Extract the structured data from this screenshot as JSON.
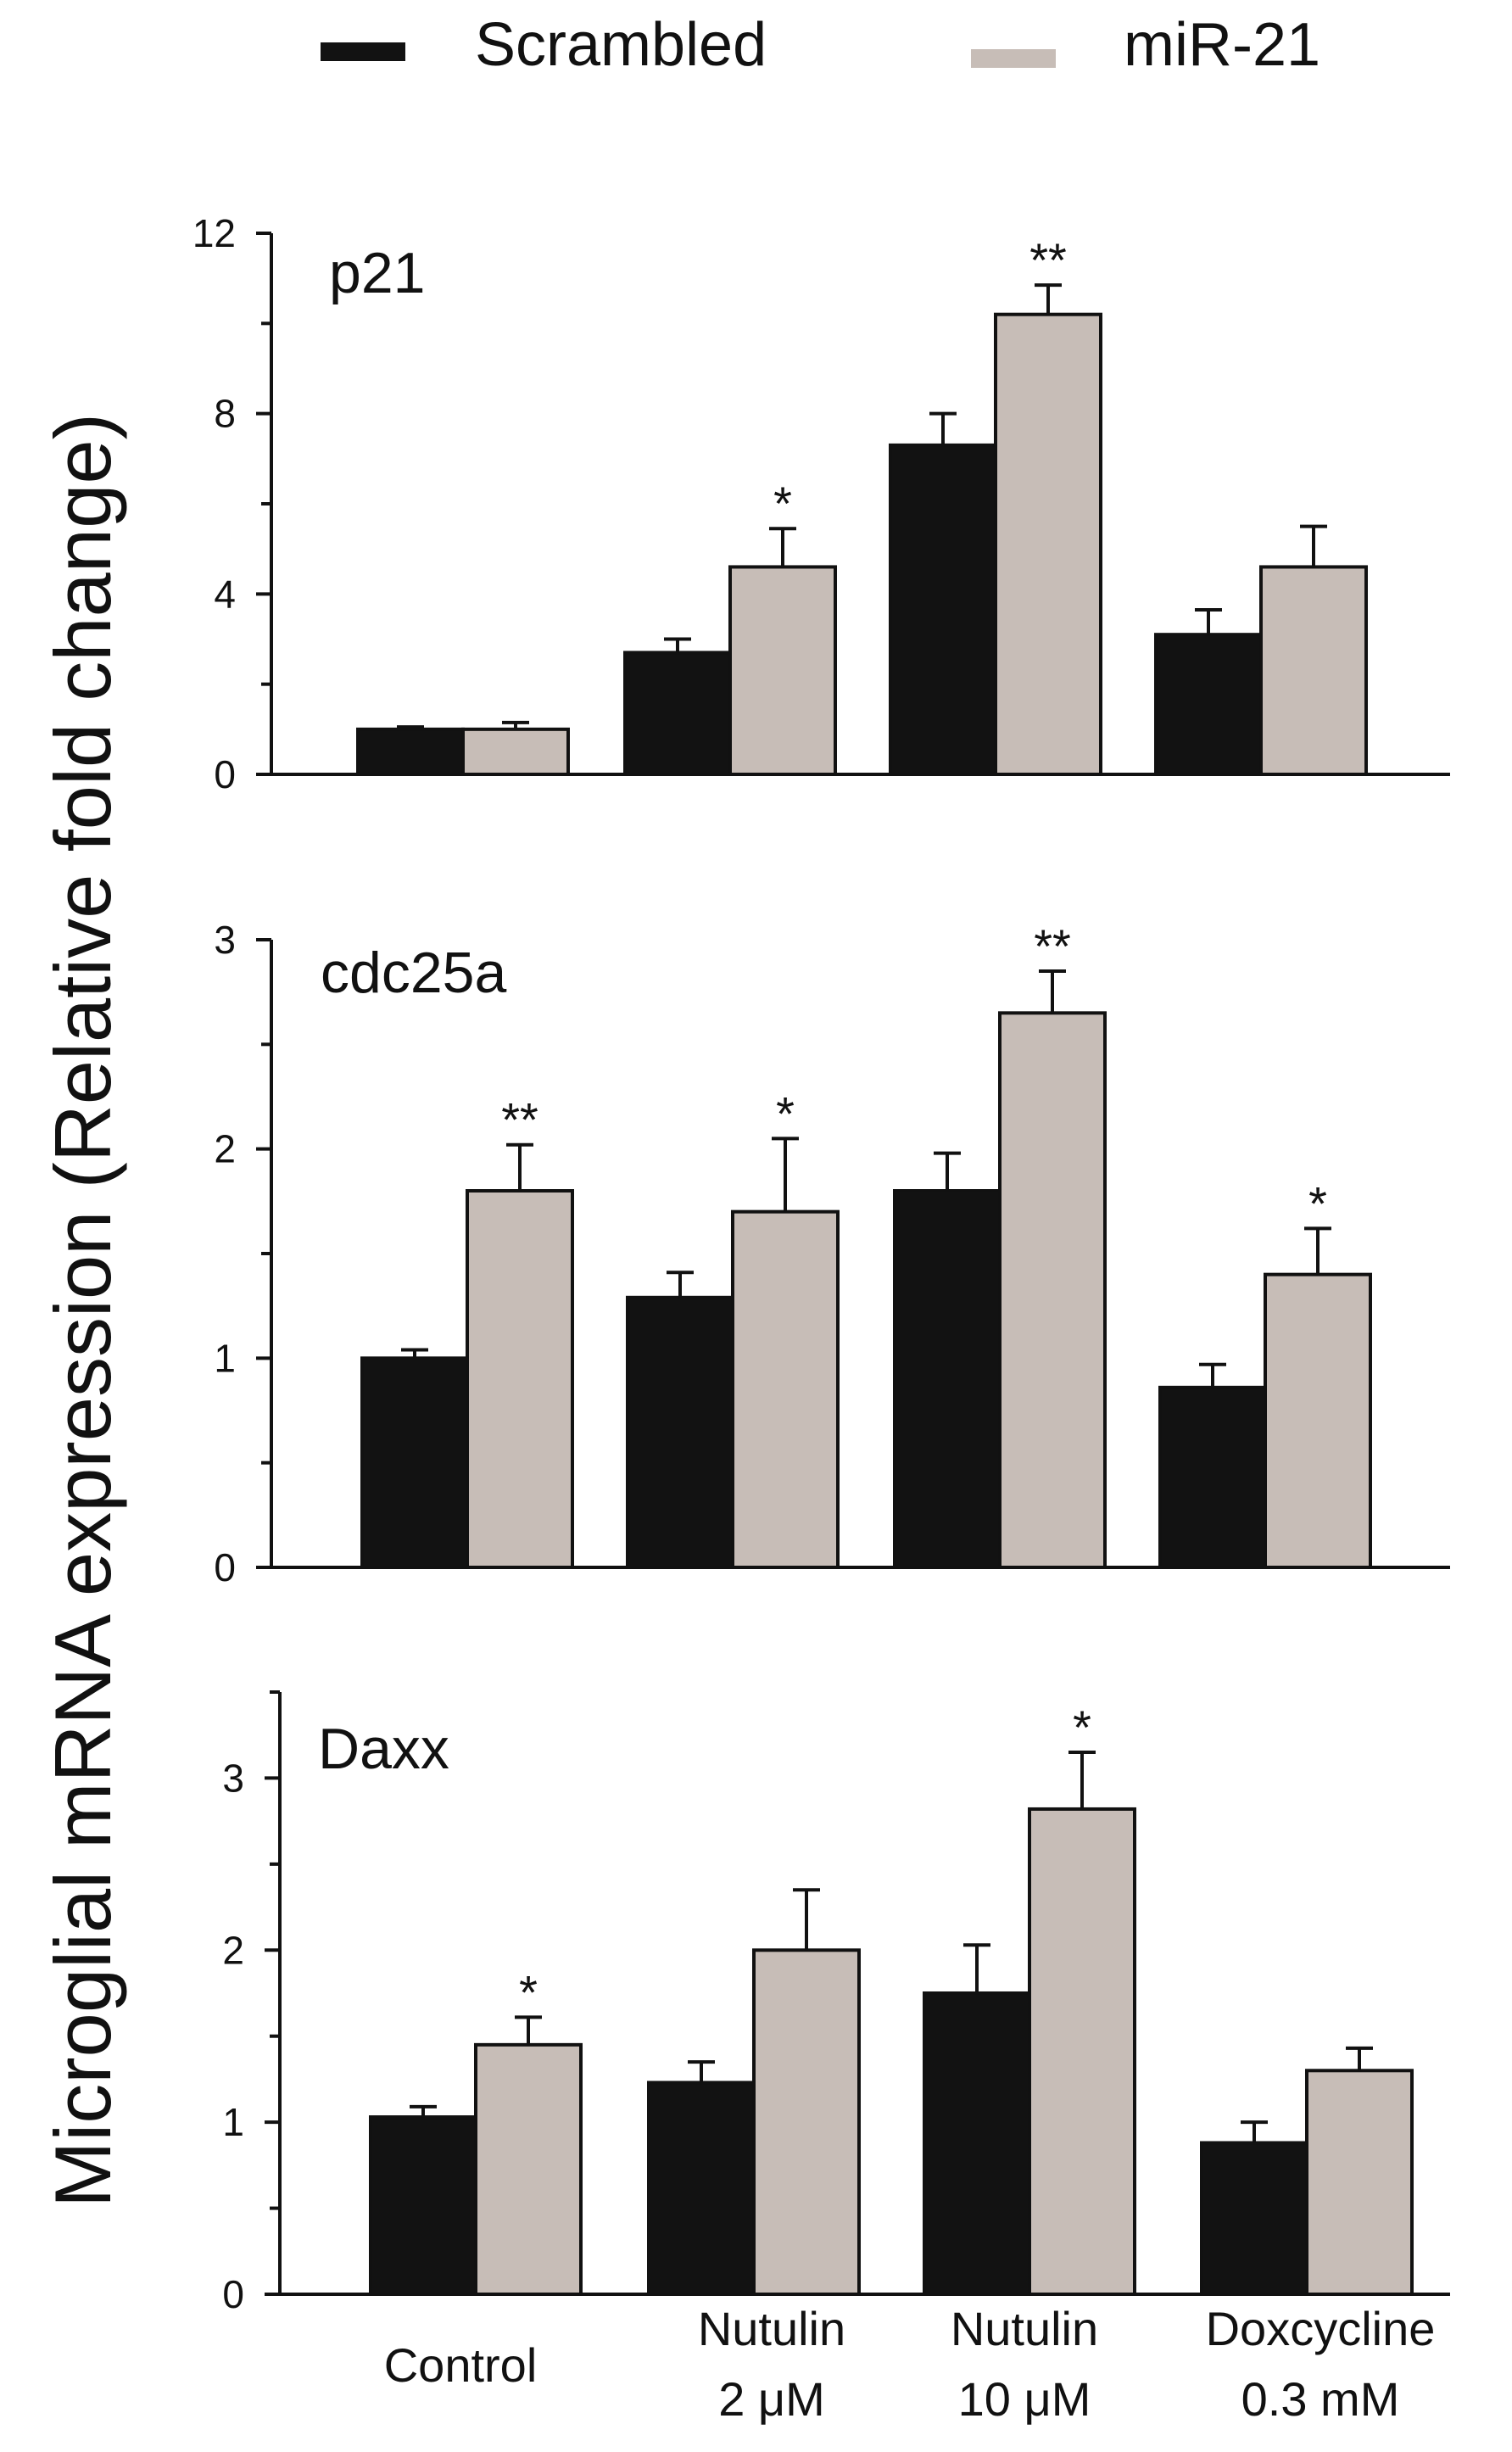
{
  "colors": {
    "scrambled": "#121212",
    "mir21": "#c7bdb7",
    "axis": "#111111"
  },
  "legend": [
    {
      "label": "Scrambled",
      "color_key": "scrambled"
    },
    {
      "label": "miR-21",
      "color_key": "mir21"
    }
  ],
  "y_axis_label": "Microglial mRNA expression (Relative fold change)",
  "x_categories": [
    {
      "line1": "Control",
      "line2": ""
    },
    {
      "line1": "Nutulin",
      "line2": "2 μM"
    },
    {
      "line1": "Nutulin",
      "line2": "10 μM"
    },
    {
      "line1": "Doxcycline",
      "line2": "0.3 mM"
    }
  ],
  "chart_data": [
    {
      "type": "bar",
      "title": "p21",
      "categories": [
        "Control",
        "Nutulin 2 μM",
        "Nutulin 10 μM",
        "Doxcycline 0.3 mM"
      ],
      "ylim": [
        0,
        12
      ],
      "major_ticks": [
        0,
        4,
        8,
        12
      ],
      "minor_step": 2,
      "series": [
        {
          "name": "Scrambled",
          "values": [
            1.0,
            2.7,
            7.3,
            3.1
          ],
          "errors": [
            0.05,
            0.3,
            0.7,
            0.55
          ]
        },
        {
          "name": "miR-21",
          "values": [
            1.0,
            4.6,
            10.2,
            4.6
          ],
          "errors": [
            0.15,
            0.85,
            0.65,
            0.9
          ]
        }
      ],
      "significance": [
        "",
        "*",
        "**",
        ""
      ]
    },
    {
      "type": "bar",
      "title": "cdc25a",
      "categories": [
        "Control",
        "Nutulin 2 μM",
        "Nutulin 10 μM",
        "Doxcycline 0.3 mM"
      ],
      "ylim": [
        0,
        3
      ],
      "major_ticks": [
        0,
        1,
        2,
        3
      ],
      "minor_step": 0.5,
      "series": [
        {
          "name": "Scrambled",
          "values": [
            1.0,
            1.29,
            1.8,
            0.86
          ],
          "errors": [
            0.04,
            0.12,
            0.18,
            0.11
          ]
        },
        {
          "name": "miR-21",
          "values": [
            1.8,
            1.7,
            2.65,
            1.4
          ],
          "errors": [
            0.22,
            0.35,
            0.2,
            0.22
          ]
        }
      ],
      "significance": [
        "**",
        "*",
        "**",
        "*"
      ]
    },
    {
      "type": "bar",
      "title": "Daxx",
      "categories": [
        "Control",
        "Nutulin 2 μM",
        "Nutulin 10 μM",
        "Doxcycline 0.3 mM"
      ],
      "ylim": [
        0,
        3.5
      ],
      "major_ticks": [
        0,
        1,
        2,
        3
      ],
      "minor_step": 0.5,
      "series": [
        {
          "name": "Scrambled",
          "values": [
            1.03,
            1.23,
            1.75,
            0.88
          ],
          "errors": [
            0.06,
            0.12,
            0.28,
            0.12
          ]
        },
        {
          "name": "miR-21",
          "values": [
            1.45,
            2.0,
            2.82,
            1.3
          ],
          "errors": [
            0.16,
            0.35,
            0.33,
            0.13
          ]
        }
      ],
      "significance": [
        "*",
        "",
        "*",
        ""
      ]
    }
  ]
}
